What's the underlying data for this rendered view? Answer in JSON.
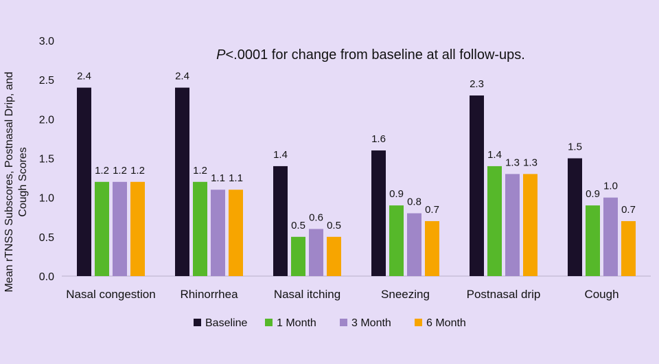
{
  "chart_data": {
    "type": "bar",
    "title": "",
    "annotation": {
      "italic": "P",
      "text": "<.0001 for change from baseline at all follow-ups."
    },
    "ylabel_lines": [
      "Mean rTNSS Subscores, Postnasal Drip, and",
      "Cough Scores"
    ],
    "xlabel": "",
    "ylim": [
      0,
      3.0
    ],
    "yticks": [
      "0.0",
      "0.5",
      "1.0",
      "1.5",
      "2.0",
      "2.5",
      "3.0"
    ],
    "grid": false,
    "legend_position": "bottom",
    "categories": [
      "Nasal congestion",
      "Rhinorrhea",
      "Nasal itching",
      "Sneezing",
      "Postnasal drip",
      "Cough"
    ],
    "series": [
      {
        "name": "Baseline",
        "color": "#1a1029",
        "values": [
          2.4,
          2.4,
          1.4,
          1.6,
          2.3,
          1.5
        ]
      },
      {
        "name": "1 Month",
        "color": "#56b82a",
        "values": [
          1.2,
          1.2,
          0.5,
          0.9,
          1.4,
          0.9
        ]
      },
      {
        "name": "3 Month",
        "color": "#9f86c8",
        "values": [
          1.2,
          1.1,
          0.6,
          0.8,
          1.3,
          1.0
        ]
      },
      {
        "name": "6 Month",
        "color": "#f7a500",
        "values": [
          1.2,
          1.1,
          0.5,
          0.7,
          1.3,
          0.7
        ]
      }
    ]
  }
}
